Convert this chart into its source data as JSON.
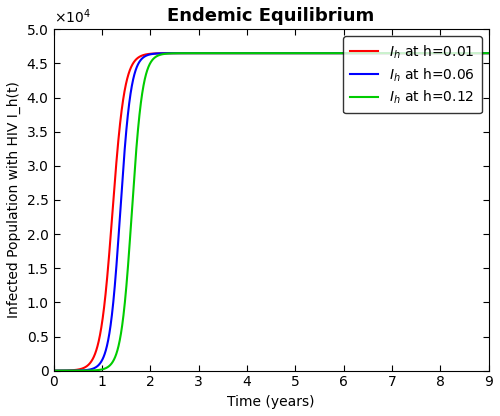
{
  "title": "Endemic Equilibrium",
  "xlabel": "Time (years)",
  "ylabel": "Infected Population with HIV I_h(t)",
  "xlim": [
    0,
    9
  ],
  "ylim": [
    0,
    50000
  ],
  "curves": [
    {
      "label": "I_h at h=0.01",
      "color": "#ff0000",
      "midpoint": 1.22,
      "steepness": 8.0
    },
    {
      "label": "I_h at h=0.06",
      "color": "#0000ff",
      "midpoint": 1.38,
      "steepness": 9.0
    },
    {
      "label": "I_h at h=0.12",
      "color": "#00cc00",
      "midpoint": 1.62,
      "steepness": 9.0
    }
  ],
  "asymptote": 46500,
  "background_color": "#ffffff",
  "title_fontsize": 13,
  "label_fontsize": 10,
  "tick_fontsize": 10,
  "legend_fontsize": 10,
  "linewidth": 1.5
}
